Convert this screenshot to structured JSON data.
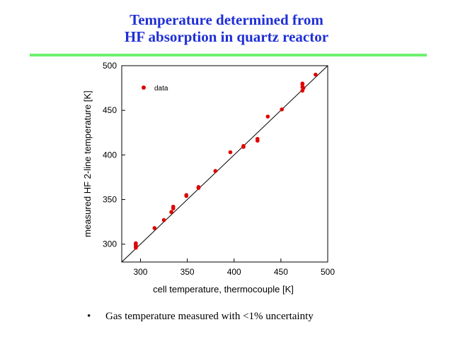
{
  "slide": {
    "title_line1": "Temperature determined from",
    "title_line2": "HF absorption in quartz reactor",
    "bullet": "Gas temperature measured with <1% uncertainty",
    "bullet_marker": "•",
    "title_color": "#1f2fd6",
    "rule_color": "#6ef06e"
  },
  "chart_data": {
    "type": "scatter",
    "title": "",
    "xlabel": "cell temperature, thermocouple [K]",
    "ylabel": "measured HF 2-line temperature [K]",
    "xlim": [
      280,
      500
    ],
    "ylim": [
      280,
      500
    ],
    "xticks": [
      300,
      350,
      400,
      450,
      500
    ],
    "yticks": [
      300,
      350,
      400,
      450,
      500
    ],
    "grid": false,
    "legend": {
      "position": "top-left",
      "entries": [
        "data"
      ]
    },
    "reference_line": {
      "from": [
        280,
        280
      ],
      "to": [
        500,
        500
      ],
      "color": "#000000"
    },
    "series": [
      {
        "name": "data",
        "color": "#e00000",
        "points": [
          [
            295,
            296
          ],
          [
            295,
            298
          ],
          [
            295,
            300
          ],
          [
            295,
            301
          ],
          [
            315,
            318
          ],
          [
            325,
            327
          ],
          [
            333,
            336
          ],
          [
            335,
            340
          ],
          [
            335,
            342
          ],
          [
            349,
            354
          ],
          [
            349,
            355
          ],
          [
            362,
            363
          ],
          [
            362,
            364
          ],
          [
            380,
            382
          ],
          [
            396,
            403
          ],
          [
            410,
            409
          ],
          [
            410,
            410
          ],
          [
            425,
            416
          ],
          [
            425,
            418
          ],
          [
            436,
            443
          ],
          [
            451,
            451
          ],
          [
            473,
            472
          ],
          [
            473,
            476
          ],
          [
            473,
            479
          ],
          [
            473,
            480
          ],
          [
            474,
            475
          ],
          [
            487,
            490
          ]
        ]
      }
    ]
  }
}
